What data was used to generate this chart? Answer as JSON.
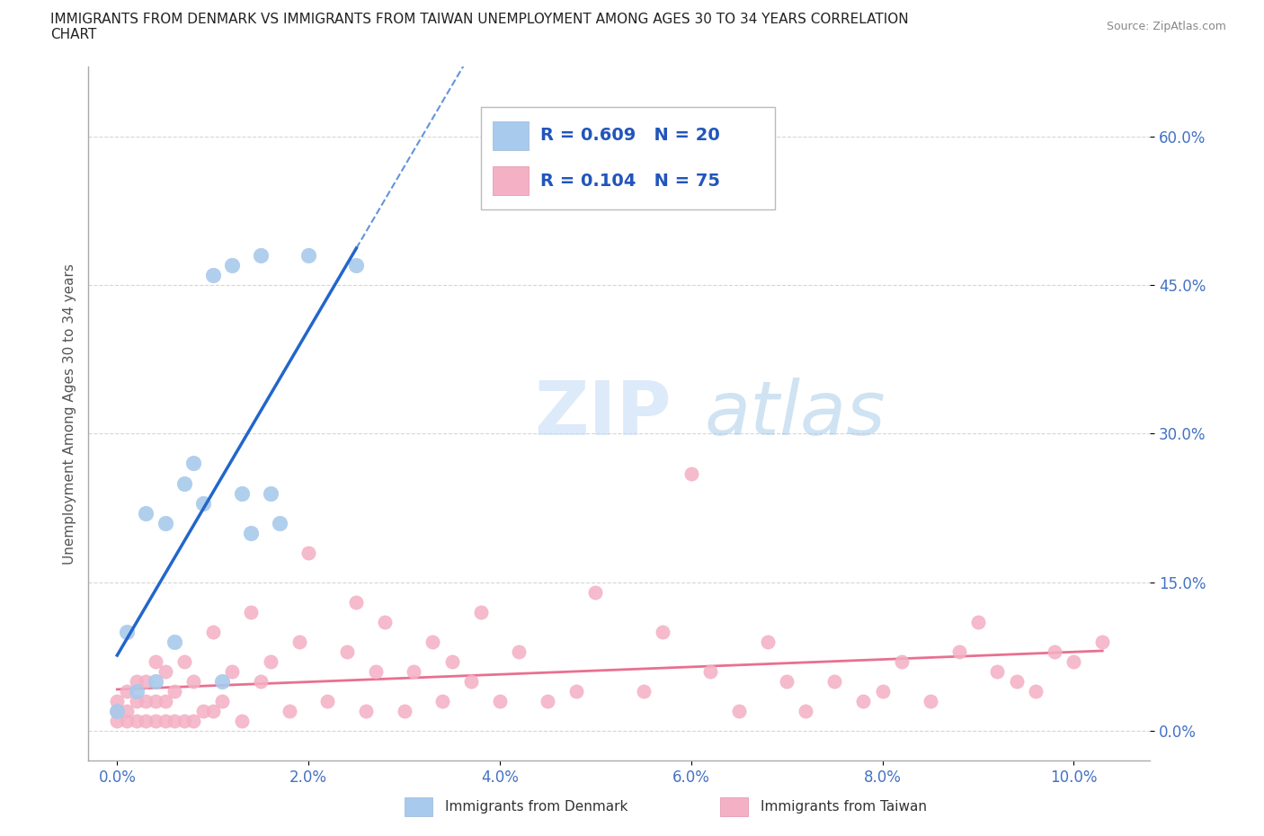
{
  "title_line1": "IMMIGRANTS FROM DENMARK VS IMMIGRANTS FROM TAIWAN UNEMPLOYMENT AMONG AGES 30 TO 34 YEARS CORRELATION",
  "title_line2": "CHART",
  "source": "Source: ZipAtlas.com",
  "ylabel": "Unemployment Among Ages 30 to 34 years",
  "x_tick_labels": [
    "0.0%",
    "2.0%",
    "4.0%",
    "6.0%",
    "8.0%",
    "10.0%"
  ],
  "x_tick_values": [
    0.0,
    0.02,
    0.04,
    0.06,
    0.08,
    0.1
  ],
  "y_tick_labels": [
    "0.0%",
    "15.0%",
    "30.0%",
    "45.0%",
    "60.0%"
  ],
  "y_tick_values": [
    0.0,
    0.15,
    0.3,
    0.45,
    0.6
  ],
  "xlim": [
    -0.003,
    0.108
  ],
  "ylim": [
    -0.03,
    0.67
  ],
  "denmark_color": "#a8caec",
  "taiwan_color": "#f4b0c5",
  "denmark_R": 0.609,
  "denmark_N": 20,
  "taiwan_R": 0.104,
  "taiwan_N": 75,
  "trend_denmark_color": "#2266cc",
  "trend_taiwan_color": "#e87090",
  "watermark_zip": "ZIP",
  "watermark_atlas": "atlas",
  "legend_R_color": "#2255bb",
  "denmark_x": [
    0.0,
    0.001,
    0.002,
    0.003,
    0.004,
    0.005,
    0.006,
    0.007,
    0.008,
    0.009,
    0.01,
    0.011,
    0.012,
    0.013,
    0.014,
    0.015,
    0.016,
    0.017,
    0.02,
    0.025
  ],
  "denmark_y": [
    0.02,
    0.1,
    0.04,
    0.22,
    0.05,
    0.21,
    0.09,
    0.25,
    0.27,
    0.23,
    0.46,
    0.05,
    0.47,
    0.24,
    0.2,
    0.48,
    0.24,
    0.21,
    0.48,
    0.47
  ],
  "taiwan_x": [
    0.0,
    0.0,
    0.0,
    0.001,
    0.001,
    0.001,
    0.002,
    0.002,
    0.002,
    0.003,
    0.003,
    0.003,
    0.004,
    0.004,
    0.004,
    0.005,
    0.005,
    0.005,
    0.006,
    0.006,
    0.007,
    0.007,
    0.008,
    0.008,
    0.009,
    0.01,
    0.01,
    0.011,
    0.012,
    0.013,
    0.014,
    0.015,
    0.016,
    0.018,
    0.019,
    0.02,
    0.022,
    0.024,
    0.025,
    0.026,
    0.027,
    0.028,
    0.03,
    0.031,
    0.033,
    0.034,
    0.035,
    0.037,
    0.038,
    0.04,
    0.042,
    0.045,
    0.048,
    0.05,
    0.055,
    0.057,
    0.06,
    0.062,
    0.065,
    0.068,
    0.07,
    0.072,
    0.075,
    0.078,
    0.08,
    0.082,
    0.085,
    0.088,
    0.09,
    0.092,
    0.094,
    0.096,
    0.098,
    0.1,
    0.103
  ],
  "taiwan_y": [
    0.01,
    0.02,
    0.03,
    0.01,
    0.02,
    0.04,
    0.01,
    0.03,
    0.05,
    0.01,
    0.03,
    0.05,
    0.01,
    0.03,
    0.07,
    0.01,
    0.03,
    0.06,
    0.01,
    0.04,
    0.01,
    0.07,
    0.01,
    0.05,
    0.02,
    0.02,
    0.1,
    0.03,
    0.06,
    0.01,
    0.12,
    0.05,
    0.07,
    0.02,
    0.09,
    0.18,
    0.03,
    0.08,
    0.13,
    0.02,
    0.06,
    0.11,
    0.02,
    0.06,
    0.09,
    0.03,
    0.07,
    0.05,
    0.12,
    0.03,
    0.08,
    0.03,
    0.04,
    0.14,
    0.04,
    0.1,
    0.26,
    0.06,
    0.02,
    0.09,
    0.05,
    0.02,
    0.05,
    0.03,
    0.04,
    0.07,
    0.03,
    0.08,
    0.11,
    0.06,
    0.05,
    0.04,
    0.08,
    0.07,
    0.09
  ],
  "legend_dk_label": "Immigrants from Denmark",
  "legend_tw_label": "Immigrants from Taiwan"
}
